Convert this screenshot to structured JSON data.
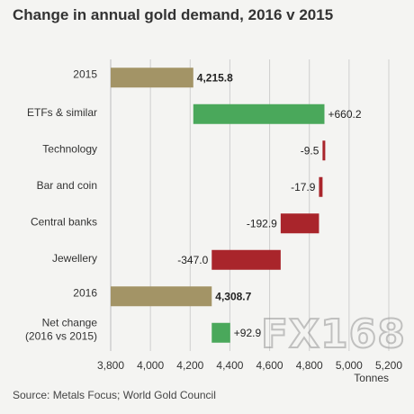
{
  "title": "Change in annual gold demand, 2016 v 2015",
  "source": "Source: Metals Focus; World Gold Council",
  "watermark": "FX168",
  "colors": {
    "total": "#a39466",
    "increase": "#4aa85b",
    "decrease": "#a9252b",
    "grid": "#cfcfcf"
  },
  "chart_data": {
    "type": "bar",
    "subtype": "waterfall-horizontal",
    "title": "Change in annual gold demand, 2016 v 2015",
    "xlabel": "Tonnes",
    "ylabel": "",
    "xlim": [
      3800,
      5200
    ],
    "xticks": [
      "3,800",
      "4,000",
      "4,200",
      "4,400",
      "4,600",
      "4,800",
      "5,000",
      "5,200"
    ],
    "grid": true,
    "categories": [
      "2015",
      "ETFs & similar",
      "Technology",
      "Bar and coin",
      "Central banks",
      "Jewellery",
      "2016",
      "Net change\n(2016 vs 2015)"
    ],
    "category_lines": [
      [
        "2015"
      ],
      [
        "ETFs & similar"
      ],
      [
        "Technology"
      ],
      [
        "Bar and coin"
      ],
      [
        "Central banks"
      ],
      [
        "Jewellery"
      ],
      [
        "2016"
      ],
      [
        "Net change",
        "(2016 vs 2015)"
      ]
    ],
    "bars": [
      {
        "category": "2015",
        "kind": "total",
        "start": 3800,
        "end": 4215.8,
        "label": "4,215.8"
      },
      {
        "category": "ETFs & similar",
        "kind": "increase",
        "start": 4215.8,
        "end": 4876.0,
        "label": "+660.2"
      },
      {
        "category": "Technology",
        "kind": "decrease",
        "start": 4876.0,
        "end": 4866.5,
        "label": "-9.5"
      },
      {
        "category": "Bar and coin",
        "kind": "decrease",
        "start": 4866.5,
        "end": 4848.6,
        "label": "-17.9"
      },
      {
        "category": "Central banks",
        "kind": "decrease",
        "start": 4848.6,
        "end": 4655.7,
        "label": "-192.9"
      },
      {
        "category": "Jewellery",
        "kind": "decrease",
        "start": 4655.7,
        "end": 4308.7,
        "label": "-347.0"
      },
      {
        "category": "2016",
        "kind": "total",
        "start": 3800,
        "end": 4308.7,
        "label": "4,308.7"
      },
      {
        "category": "Net change\n(2016 vs 2015)",
        "kind": "increase",
        "start": 4308.7,
        "end": 4401.6,
        "label": "+92.9"
      }
    ]
  }
}
